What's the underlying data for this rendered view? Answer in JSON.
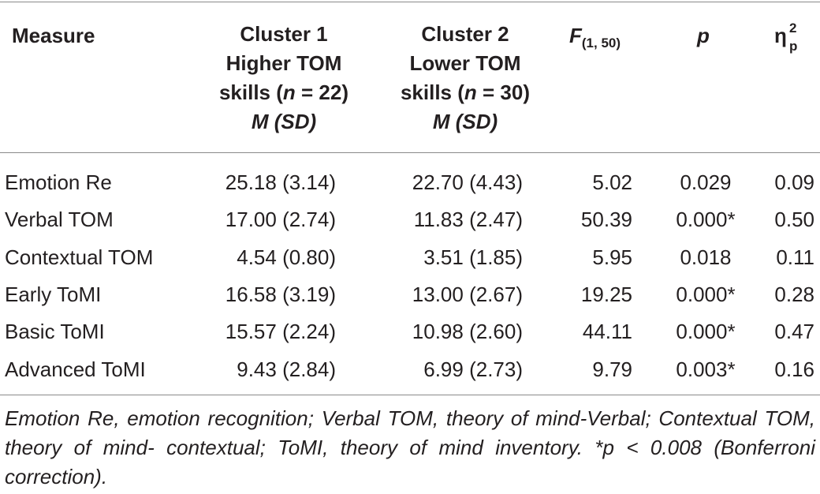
{
  "table": {
    "headers": {
      "measure": "Measure",
      "cluster1": [
        "Cluster 1",
        "Higher TOM",
        "skills (",
        "n",
        " = 22)",
        "M (SD)"
      ],
      "cluster2": [
        "Cluster 2",
        "Lower TOM",
        "skills (",
        "n",
        " = 30)",
        "M (SD)"
      ],
      "f_main": "F",
      "f_sub": "(1, 50)",
      "p": "p",
      "eta": "η",
      "eta_sup": "2",
      "eta_sub": "p"
    },
    "rows": [
      {
        "measure": "Emotion Re",
        "c1": "25.18 (3.14)",
        "c2": "22.70 (4.43)",
        "f": "5.02",
        "p": "0.029",
        "eta": "0.09"
      },
      {
        "measure": "Verbal TOM",
        "c1": "17.00 (2.74)",
        "c2": "11.83 (2.47)",
        "f": "50.39",
        "p": "0.000*",
        "eta": "0.50"
      },
      {
        "measure": "Contextual TOM",
        "c1": "4.54 (0.80)",
        "c2": "3.51 (1.85)",
        "f": "5.95",
        "p": "0.018",
        "eta": "0.11"
      },
      {
        "measure": "Early ToMI",
        "c1": "16.58 (3.19)",
        "c2": "13.00 (2.67)",
        "f": "19.25",
        "p": "0.000*",
        "eta": "0.28"
      },
      {
        "measure": "Basic ToMI",
        "c1": "15.57 (2.24)",
        "c2": "10.98 (2.60)",
        "f": "44.11",
        "p": "0.000*",
        "eta": "0.47"
      },
      {
        "measure": "Advanced ToMI",
        "c1": "9.43 (2.84)",
        "c2": "6.99 (2.73)",
        "f": "9.79",
        "p": "0.003*",
        "eta": "0.16"
      }
    ]
  },
  "footnote": "Emotion Re, emotion recognition; Verbal TOM, theory of mind-Verbal; Contextual TOM, theory of mind- contextual; ToMI, theory of mind inventory. *p < 0.008 (Bonferroni correction)."
}
